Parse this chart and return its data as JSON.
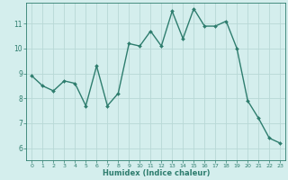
{
  "x": [
    0,
    1,
    2,
    3,
    4,
    5,
    6,
    7,
    8,
    9,
    10,
    11,
    12,
    13,
    14,
    15,
    16,
    17,
    18,
    19,
    20,
    21,
    22,
    23
  ],
  "y": [
    8.9,
    8.5,
    8.3,
    8.7,
    8.6,
    7.7,
    9.3,
    7.7,
    8.2,
    10.2,
    10.1,
    10.7,
    10.1,
    11.5,
    10.4,
    11.6,
    10.9,
    10.9,
    11.1,
    10.0,
    7.9,
    7.2,
    6.4,
    6.2
  ],
  "line_color": "#2e7d6e",
  "marker": "D",
  "marker_size": 2.0,
  "bg_color": "#d4eeed",
  "grid_color": "#b8d8d6",
  "xlabel": "Humidex (Indice chaleur)",
  "xlim": [
    -0.5,
    23.5
  ],
  "ylim": [
    5.5,
    11.85
  ],
  "yticks": [
    6,
    7,
    8,
    9,
    10,
    11
  ],
  "xticks": [
    0,
    1,
    2,
    3,
    4,
    5,
    6,
    7,
    8,
    9,
    10,
    11,
    12,
    13,
    14,
    15,
    16,
    17,
    18,
    19,
    20,
    21,
    22,
    23
  ],
  "tick_color": "#2e7d6e",
  "label_color": "#2e7d6e",
  "spine_color": "#2e7d6e",
  "xlabel_fontsize": 6.0,
  "xtick_fontsize": 4.5,
  "ytick_fontsize": 5.5
}
